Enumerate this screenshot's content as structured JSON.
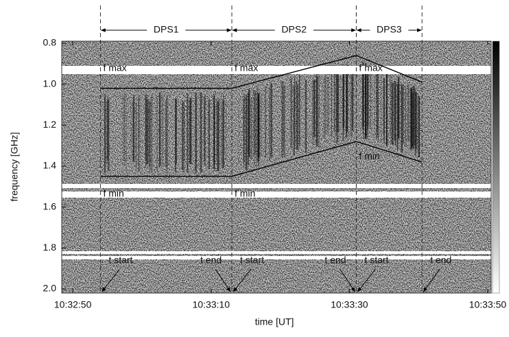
{
  "chart_data": {
    "type": "spectrogram",
    "xlabel": "time [UT]",
    "ylabel": "frequency [GHz]",
    "xlim": [
      37968.4,
      38030.5
    ],
    "ylim": [
      0.79,
      2.02
    ],
    "y_inverted": true,
    "xticks": [
      {
        "value": 37970,
        "label": "10:32:50"
      },
      {
        "value": 37990,
        "label": "10:33:10"
      },
      {
        "value": 38010,
        "label": "10:33:30"
      },
      {
        "value": 38030,
        "label": "10:33:50"
      }
    ],
    "yticks": [
      0.8,
      {
        "value": 1.0,
        "label": "1.0"
      },
      1.2,
      1.4,
      1.6,
      1.8,
      {
        "value": 2.0,
        "label": "2.0"
      }
    ],
    "line_color": "#000000",
    "segments": [
      {
        "name": "DPS1",
        "t_start": 37974,
        "t_end": 37993,
        "f_max": [
          1.02,
          1.02
        ],
        "f_min": [
          1.45,
          1.45
        ]
      },
      {
        "name": "DPS2",
        "t_start": 37993,
        "t_end": 38011,
        "f_max": [
          1.02,
          0.86
        ],
        "f_min": [
          1.45,
          1.28
        ]
      },
      {
        "name": "DPS3",
        "t_start": 38011,
        "t_end": 38020.5,
        "f_max": [
          0.86,
          0.99
        ],
        "f_min": [
          1.28,
          1.38
        ]
      }
    ],
    "annotations": {
      "f_max": "f max",
      "f_min": "f min",
      "t_start": "t start",
      "t_end": "t end"
    }
  }
}
